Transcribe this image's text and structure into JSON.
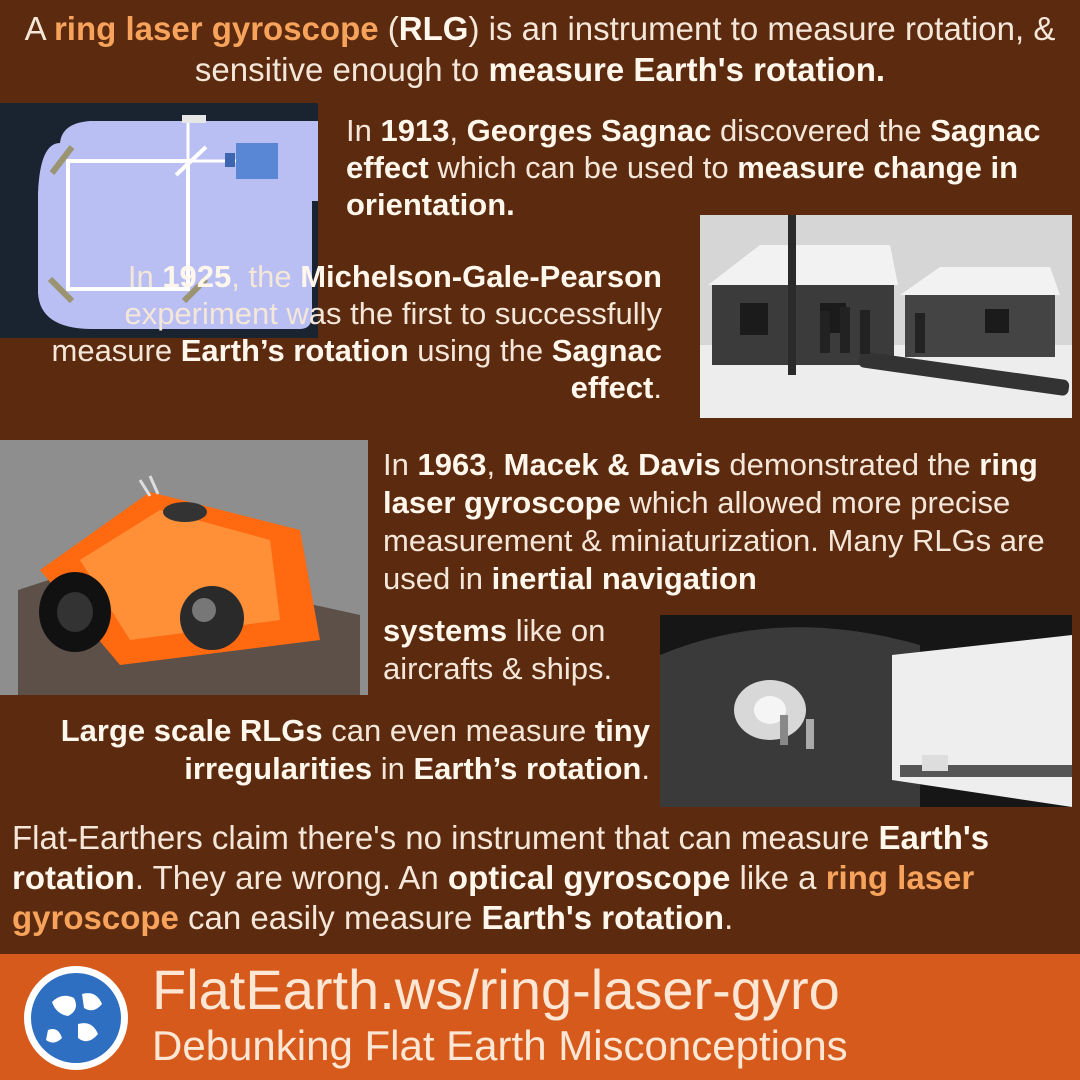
{
  "intro": {
    "s1": "A ",
    "s2": "ring laser gyroscope",
    "s3": " (",
    "s4": "RLG",
    "s5": ") is an instrument to measure rotation, & sensitive enough to ",
    "s6": "measure Earth's rotation."
  },
  "p1913": {
    "s1": "In ",
    "s2": "1913",
    "s3": ", ",
    "s4": "Georges Sagnac",
    "s5": " discovered the ",
    "s6": "Sagnac effect",
    "s7": " which can be used to ",
    "s8": "measure change in orientation."
  },
  "p1925": {
    "s1": "In ",
    "s2": "1925",
    "s3": ", the ",
    "s4": "Michelson-Gale-Pearson",
    "s5": " experiment was the first to successfully measure ",
    "s6": "Earth’s rotation",
    "s7": " using the ",
    "s8": "Sagnac effect",
    "s9": "."
  },
  "p1963": {
    "s1": "In ",
    "s2": "1963",
    "s3": ", ",
    "s4": "Macek & Davis",
    "s5": " demonstrated the ",
    "s6": "ring laser gyroscope",
    "s7": " which allowed more precise measurement & miniaturization. Many RLGs are used in ",
    "s8": "inertial navigation"
  },
  "p1963b": {
    "s1": "systems",
    "s2": " like on aircrafts & ships."
  },
  "plarge": {
    "s1": "Large scale RLGs",
    "s2": " can even measure ",
    "s3": "tiny irregularities",
    "s4": " in ",
    "s5": "Earth’s rotation",
    "s6": "."
  },
  "pclaim": {
    "s1": "Flat-Earthers claim there's no instrument that can measure ",
    "s2": "Earth's rotation",
    "s3": ". They are wrong. An ",
    "s4": "optical gyroscope",
    "s5": " like a ",
    "s6": "ring laser gyroscope",
    "s7": " can easily measure ",
    "s8": "Earth's rotation",
    "s9": "."
  },
  "footer": {
    "url": "FlatEarth.ws/ring-laser-gyro",
    "tagline": "Debunking Flat Earth Misconceptions"
  },
  "colors": {
    "background": "#5b2a0f",
    "accent_orange_text": "#f7a35c",
    "footer_band": "#d65a1c"
  },
  "images": {
    "diagram": "sagnac-interferometer-diagram",
    "huts": "michelson-gale-pearson-site-photo",
    "gyro": "ring-laser-gyroscope-photo",
    "tunnel": "large-ring-laser-tunnel-photo",
    "logo": "globe-logo-icon"
  }
}
